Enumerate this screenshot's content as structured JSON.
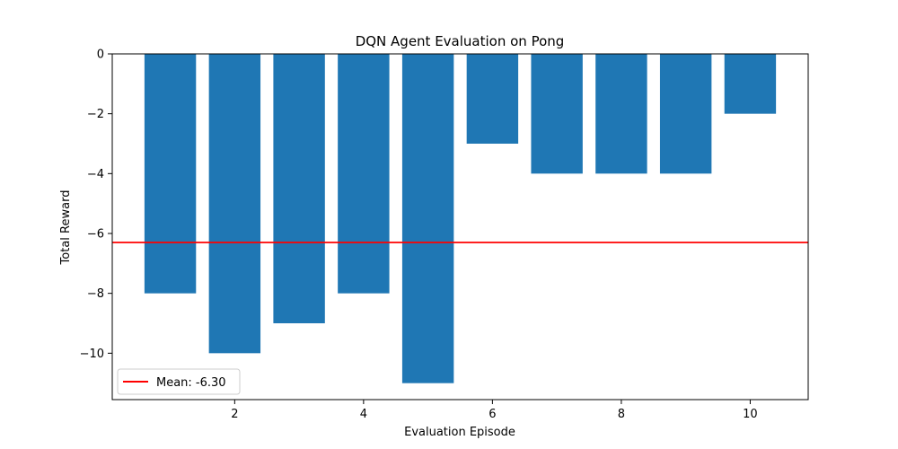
{
  "chart_data": {
    "type": "bar",
    "title": "DQN Agent Evaluation on Pong",
    "xlabel": "Evaluation Episode",
    "ylabel": "Total Reward",
    "x": [
      1,
      2,
      3,
      4,
      5,
      6,
      7,
      8,
      9,
      10
    ],
    "values": [
      -8,
      -10,
      -9,
      -8,
      -11,
      -3,
      -4,
      -4,
      -4,
      -2
    ],
    "xlim": [
      0.1,
      10.9
    ],
    "ylim": [
      -11.55,
      0
    ],
    "xticks": [
      2,
      4,
      6,
      8,
      10
    ],
    "yticks": [
      0,
      -2,
      -4,
      -6,
      -8,
      -10
    ],
    "grid": false,
    "bar_color": "#1f77b4",
    "mean_line": {
      "value": -6.3,
      "label": "Mean: -6.30",
      "color": "#ff0000"
    },
    "legend": {
      "placement": "lower-left",
      "entries": [
        "Mean: -6.30"
      ]
    }
  }
}
